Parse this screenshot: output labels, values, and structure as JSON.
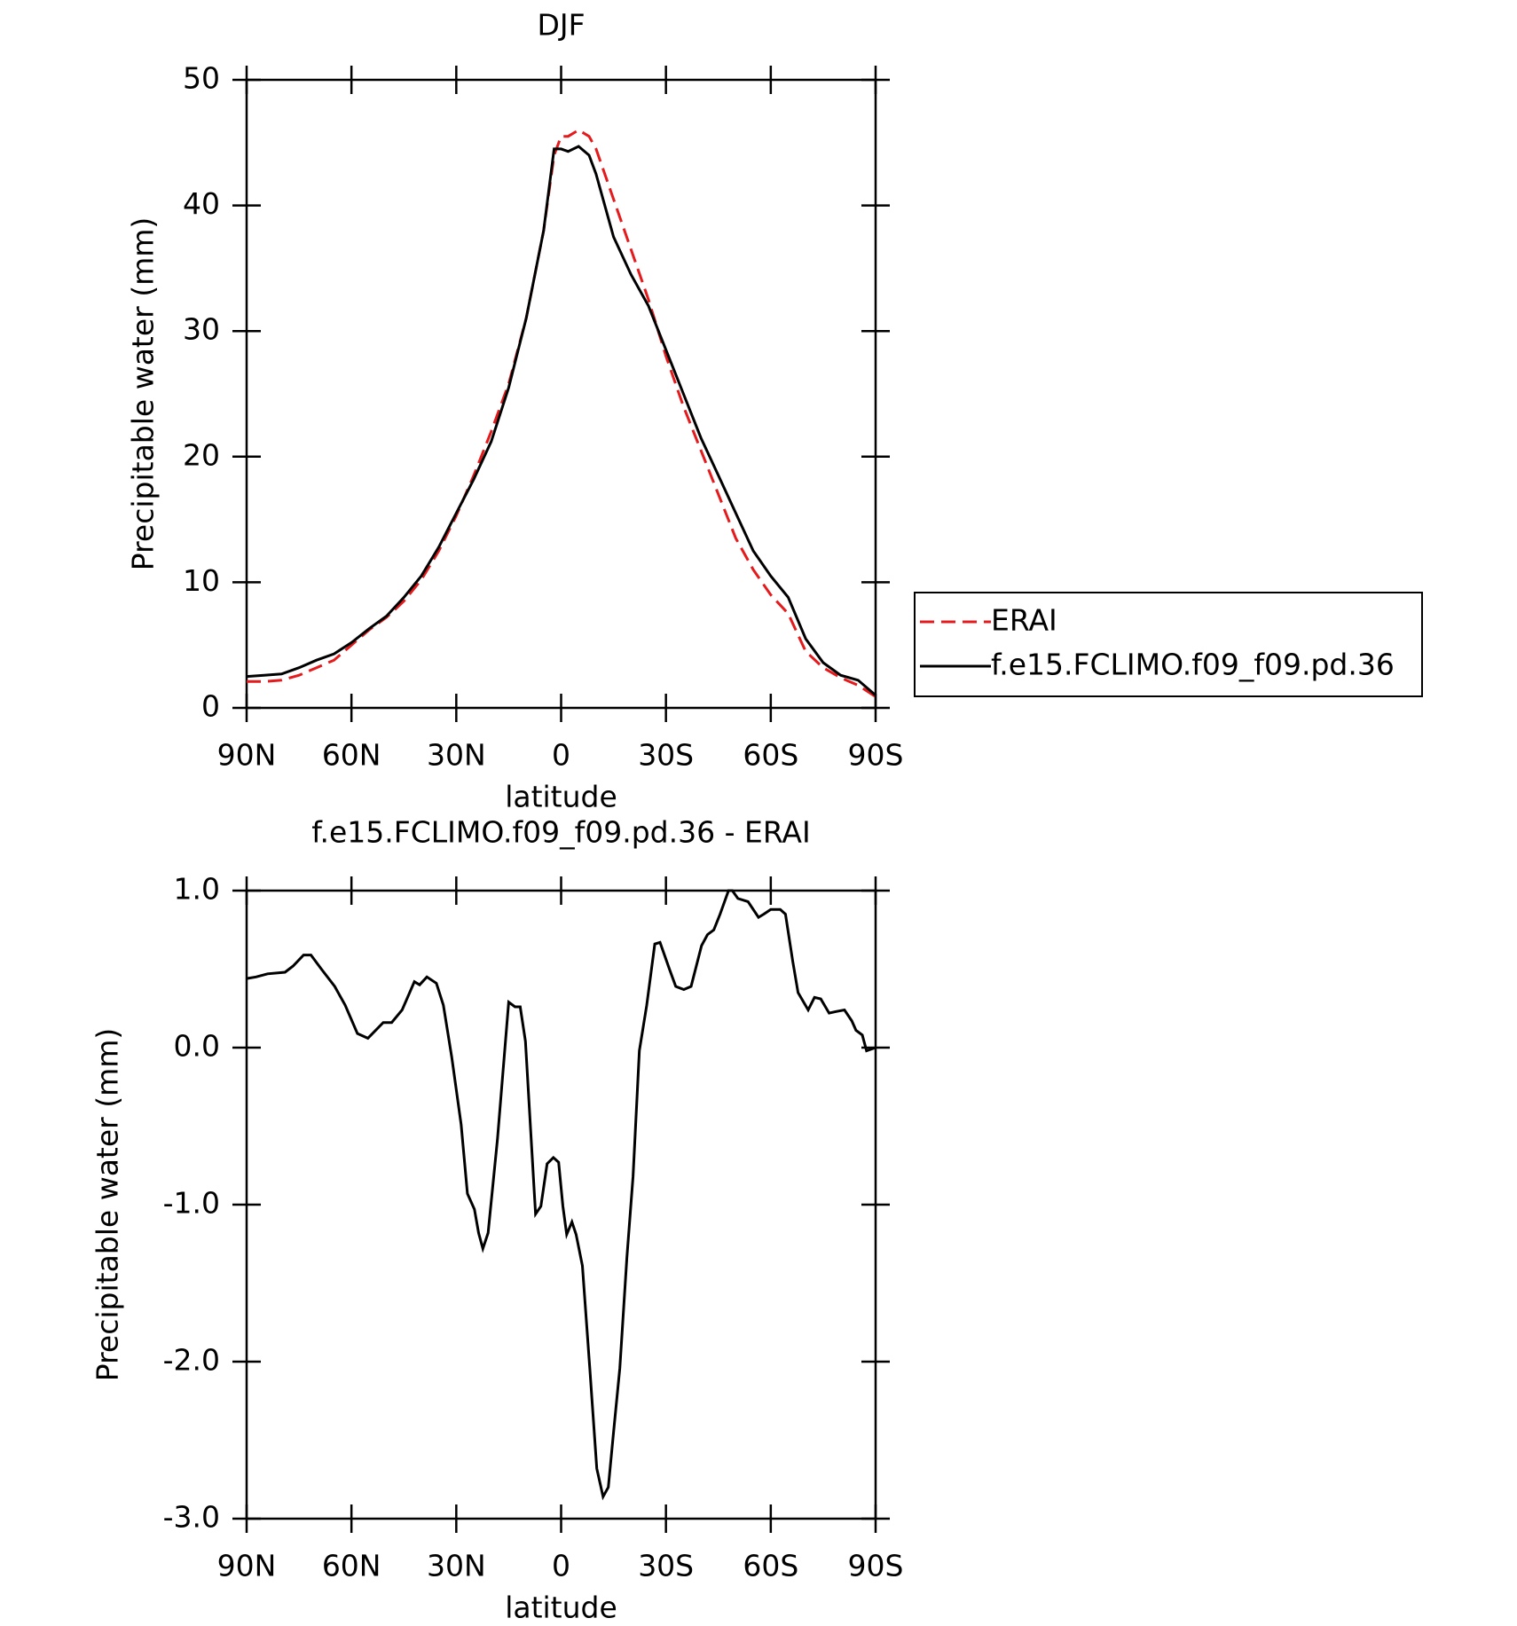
{
  "chart_data": [
    {
      "type": "line",
      "title": "DJF",
      "xlabel": "latitude",
      "ylabel": "Precipitable water (mm)",
      "x": [
        90,
        85,
        80,
        75,
        70,
        65,
        60,
        55,
        50,
        45,
        40,
        35,
        30,
        25,
        20,
        15,
        10,
        5,
        2,
        0,
        -2,
        -5,
        -8,
        -10,
        -15,
        -20,
        -25,
        -30,
        -35,
        -40,
        -45,
        -50,
        -55,
        -60,
        -65,
        -70,
        -75,
        -80,
        -85,
        -90
      ],
      "series": [
        {
          "name": "ERAI",
          "color": "#e41a1c",
          "dash": true,
          "values": [
            2.1,
            2.1,
            2.2,
            2.6,
            3.2,
            3.8,
            5.0,
            6.2,
            7.2,
            8.5,
            10.2,
            12.5,
            15.3,
            18.5,
            22.0,
            25.8,
            31,
            38,
            44,
            45.5,
            45.5,
            46,
            45.5,
            44.5,
            40.5,
            36.5,
            32.5,
            28,
            24,
            20.5,
            17,
            13.5,
            11,
            9,
            7.5,
            4.5,
            3.2,
            2.4,
            1.8,
            0.9
          ]
        },
        {
          "name": "f.e15.FCLIMO.f09_f09.pd.36",
          "color": "#000000",
          "dash": false,
          "values": [
            2.5,
            2.6,
            2.7,
            3.2,
            3.8,
            4.3,
            5.2,
            6.3,
            7.3,
            8.8,
            10.5,
            12.8,
            15.5,
            18.2,
            21.2,
            25.5,
            31.0,
            38,
            44.5,
            44.5,
            44.3,
            44.7,
            44,
            42.5,
            37.5,
            34.5,
            32,
            28.5,
            25,
            21.5,
            18.5,
            15.5,
            12.5,
            10.5,
            8.8,
            5.5,
            3.6,
            2.6,
            2.2,
            1.0
          ]
        }
      ],
      "xlim": [
        90,
        -90
      ],
      "xticks": [
        {
          "value": 90,
          "label": "90N"
        },
        {
          "value": 60,
          "label": "60N"
        },
        {
          "value": 30,
          "label": "30N"
        },
        0,
        {
          "value": -30,
          "label": "30S"
        },
        {
          "value": -60,
          "label": "60S"
        },
        {
          "value": -90,
          "label": "90S"
        }
      ],
      "ylim": [
        0,
        50
      ],
      "yticks": [
        0,
        10,
        20,
        30,
        40,
        50
      ],
      "legend": "right"
    },
    {
      "type": "line",
      "title": "f.e15.FCLIMO.f09_f09.pd.36 - ERAI",
      "xlabel": "latitude",
      "ylabel": "Precipitable water (mm)",
      "x": [
        90,
        87.3,
        84,
        79,
        76.7,
        73.7,
        71.6,
        68.6,
        64.8,
        61.8,
        58.3,
        55.3,
        50.9,
        48.5,
        45.5,
        42,
        40.5,
        38.4,
        35.7,
        33.7,
        31.3,
        28.6,
        26.8,
        24.8,
        23.6,
        22.4,
        20.9,
        18.2,
        15,
        13.2,
        11.7,
        10.2,
        7.3,
        5.8,
        4,
        2.2,
        0.7,
        -0.5,
        -1.6,
        -3.1,
        -4.3,
        -6.1,
        -8.2,
        -10.2,
        -12,
        -13.5,
        -15,
        -16.8,
        -18.8,
        -20.6,
        -22.4,
        -24.5,
        -26.8,
        -28.3,
        -31,
        -32.8,
        -35.1,
        -37.2,
        -40.2,
        -41.9,
        -43.7,
        -45.5,
        -47.9,
        -49,
        -50.6,
        -53.5,
        -56.5,
        -58,
        -60,
        -62.7,
        -64.2,
        -66.3,
        -67.8,
        -70.7,
        -72.5,
        -74.3,
        -76.7,
        -78.7,
        -81.1,
        -83.2,
        -84.4,
        -86.2,
        -87.4,
        -90
      ],
      "series": [
        {
          "name": "f.e15.FCLIMO.f09_f09.pd.36 - ERAI",
          "color": "#000000",
          "dash": false,
          "values": [
            0.44,
            0.45,
            0.47,
            0.48,
            0.52,
            0.59,
            0.59,
            0.5,
            0.39,
            0.27,
            0.09,
            0.06,
            0.16,
            0.16,
            0.24,
            0.42,
            0.4,
            0.45,
            0.41,
            0.27,
            -0.06,
            -0.49,
            -0.93,
            -1.03,
            -1.18,
            -1.28,
            -1.18,
            -0.58,
            0.29,
            0.26,
            0.26,
            0.04,
            -1.06,
            -1.01,
            -0.74,
            -0.7,
            -0.73,
            -1.01,
            -1.19,
            -1.11,
            -1.19,
            -1.39,
            -2.04,
            -2.68,
            -2.86,
            -2.8,
            -2.45,
            -2.04,
            -1.34,
            -0.82,
            -0.02,
            0.27,
            0.66,
            0.67,
            0.5,
            0.39,
            0.37,
            0.39,
            0.65,
            0.72,
            0.75,
            0.85,
            1.0,
            1.0,
            0.95,
            0.93,
            0.83,
            0.85,
            0.88,
            0.88,
            0.85,
            0.55,
            0.35,
            0.24,
            0.32,
            0.31,
            0.22,
            0.23,
            0.24,
            0.17,
            0.11,
            0.08,
            -0.02,
            0.0
          ]
        }
      ],
      "xlim": [
        90,
        -90
      ],
      "xticks": [
        {
          "value": 90,
          "label": "90N"
        },
        {
          "value": 60,
          "label": "60N"
        },
        {
          "value": 30,
          "label": "30N"
        },
        0,
        {
          "value": -30,
          "label": "30S"
        },
        {
          "value": -60,
          "label": "60S"
        },
        {
          "value": -90,
          "label": "90S"
        }
      ],
      "ylim": [
        -3,
        1
      ],
      "yticks": [
        {
          "value": -3,
          "label": "-3.0"
        },
        {
          "value": -2,
          "label": "-2.0"
        },
        {
          "value": -1,
          "label": "-1.0"
        },
        {
          "value": 0,
          "label": "0.0"
        },
        {
          "value": 1,
          "label": "1.0"
        }
      ]
    }
  ]
}
